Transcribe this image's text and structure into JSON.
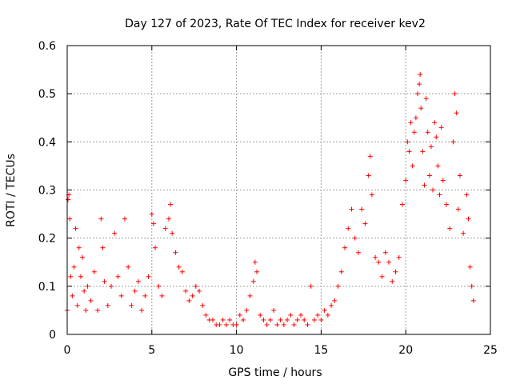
{
  "chart_data": {
    "type": "scatter",
    "title": "Day 127 of 2023, Rate Of TEC Index for receiver kev2",
    "xlabel": "GPS time / hours",
    "ylabel": "ROTI / TECUs",
    "xlim": [
      0,
      25
    ],
    "ylim": [
      0,
      0.6
    ],
    "x_ticks": [
      0,
      5,
      10,
      15,
      20,
      25
    ],
    "x_tick_labels": [
      "0",
      "5",
      "10",
      "15",
      "20",
      "25"
    ],
    "y_ticks": [
      0,
      0.1,
      0.2,
      0.3,
      0.4,
      0.5,
      0.6
    ],
    "y_tick_labels": [
      "0",
      "0.1",
      "0.2",
      "0.3",
      "0.4",
      "0.5",
      "0.6"
    ],
    "grid": true,
    "marker": "+",
    "series": [
      {
        "name": "ROTI",
        "color": "#ff0000",
        "points": [
          [
            0.0,
            0.05
          ],
          [
            0.05,
            0.28
          ],
          [
            0.1,
            0.29
          ],
          [
            0.15,
            0.24
          ],
          [
            0.2,
            0.12
          ],
          [
            0.3,
            0.08
          ],
          [
            0.4,
            0.14
          ],
          [
            0.5,
            0.22
          ],
          [
            0.6,
            0.06
          ],
          [
            0.7,
            0.18
          ],
          [
            0.8,
            0.12
          ],
          [
            0.9,
            0.16
          ],
          [
            1.0,
            0.09
          ],
          [
            1.1,
            0.05
          ],
          [
            1.2,
            0.1
          ],
          [
            1.4,
            0.07
          ],
          [
            1.6,
            0.13
          ],
          [
            1.8,
            0.05
          ],
          [
            2.0,
            0.24
          ],
          [
            2.1,
            0.18
          ],
          [
            2.2,
            0.11
          ],
          [
            2.4,
            0.06
          ],
          [
            2.6,
            0.1
          ],
          [
            2.8,
            0.21
          ],
          [
            3.0,
            0.12
          ],
          [
            3.2,
            0.08
          ],
          [
            3.4,
            0.24
          ],
          [
            3.6,
            0.14
          ],
          [
            3.8,
            0.06
          ],
          [
            4.0,
            0.09
          ],
          [
            4.2,
            0.11
          ],
          [
            4.4,
            0.05
          ],
          [
            4.6,
            0.08
          ],
          [
            4.8,
            0.12
          ],
          [
            5.0,
            0.25
          ],
          [
            5.1,
            0.23
          ],
          [
            5.2,
            0.18
          ],
          [
            5.4,
            0.1
          ],
          [
            5.6,
            0.08
          ],
          [
            5.8,
            0.22
          ],
          [
            6.0,
            0.24
          ],
          [
            6.1,
            0.27
          ],
          [
            6.2,
            0.21
          ],
          [
            6.4,
            0.17
          ],
          [
            6.6,
            0.14
          ],
          [
            6.8,
            0.13
          ],
          [
            7.0,
            0.09
          ],
          [
            7.2,
            0.07
          ],
          [
            7.4,
            0.08
          ],
          [
            7.6,
            0.1
          ],
          [
            7.8,
            0.09
          ],
          [
            8.0,
            0.06
          ],
          [
            8.2,
            0.04
          ],
          [
            8.4,
            0.03
          ],
          [
            8.6,
            0.03
          ],
          [
            8.8,
            0.02
          ],
          [
            9.0,
            0.02
          ],
          [
            9.2,
            0.03
          ],
          [
            9.4,
            0.02
          ],
          [
            9.6,
            0.03
          ],
          [
            9.8,
            0.02
          ],
          [
            10.0,
            0.02
          ],
          [
            10.2,
            0.04
          ],
          [
            10.4,
            0.03
          ],
          [
            10.6,
            0.05
          ],
          [
            10.8,
            0.08
          ],
          [
            11.0,
            0.11
          ],
          [
            11.1,
            0.15
          ],
          [
            11.2,
            0.13
          ],
          [
            11.4,
            0.04
          ],
          [
            11.6,
            0.03
          ],
          [
            11.8,
            0.02
          ],
          [
            12.0,
            0.03
          ],
          [
            12.2,
            0.05
          ],
          [
            12.4,
            0.02
          ],
          [
            12.6,
            0.03
          ],
          [
            12.8,
            0.02
          ],
          [
            13.0,
            0.03
          ],
          [
            13.2,
            0.04
          ],
          [
            13.4,
            0.02
          ],
          [
            13.6,
            0.03
          ],
          [
            13.8,
            0.04
          ],
          [
            14.0,
            0.03
          ],
          [
            14.2,
            0.02
          ],
          [
            14.4,
            0.1
          ],
          [
            14.6,
            0.03
          ],
          [
            14.8,
            0.04
          ],
          [
            15.0,
            0.03
          ],
          [
            15.2,
            0.05
          ],
          [
            15.4,
            0.04
          ],
          [
            15.6,
            0.06
          ],
          [
            15.8,
            0.07
          ],
          [
            16.0,
            0.1
          ],
          [
            16.2,
            0.13
          ],
          [
            16.4,
            0.18
          ],
          [
            16.6,
            0.22
          ],
          [
            16.8,
            0.26
          ],
          [
            17.0,
            0.2
          ],
          [
            17.2,
            0.17
          ],
          [
            17.4,
            0.26
          ],
          [
            17.6,
            0.23
          ],
          [
            17.8,
            0.33
          ],
          [
            17.9,
            0.37
          ],
          [
            18.0,
            0.29
          ],
          [
            18.2,
            0.16
          ],
          [
            18.4,
            0.15
          ],
          [
            18.6,
            0.12
          ],
          [
            18.8,
            0.17
          ],
          [
            19.0,
            0.15
          ],
          [
            19.2,
            0.11
          ],
          [
            19.4,
            0.13
          ],
          [
            19.6,
            0.16
          ],
          [
            19.8,
            0.27
          ],
          [
            20.0,
            0.32
          ],
          [
            20.1,
            0.4
          ],
          [
            20.2,
            0.38
          ],
          [
            20.3,
            0.44
          ],
          [
            20.4,
            0.35
          ],
          [
            20.5,
            0.42
          ],
          [
            20.6,
            0.45
          ],
          [
            20.7,
            0.5
          ],
          [
            20.8,
            0.52
          ],
          [
            20.85,
            0.54
          ],
          [
            20.9,
            0.47
          ],
          [
            21.0,
            0.38
          ],
          [
            21.1,
            0.31
          ],
          [
            21.2,
            0.49
          ],
          [
            21.3,
            0.42
          ],
          [
            21.4,
            0.33
          ],
          [
            21.5,
            0.39
          ],
          [
            21.6,
            0.3
          ],
          [
            21.7,
            0.44
          ],
          [
            21.8,
            0.41
          ],
          [
            21.9,
            0.35
          ],
          [
            22.0,
            0.29
          ],
          [
            22.1,
            0.43
          ],
          [
            22.2,
            0.32
          ],
          [
            22.4,
            0.27
          ],
          [
            22.6,
            0.22
          ],
          [
            22.8,
            0.4
          ],
          [
            22.9,
            0.5
          ],
          [
            23.0,
            0.46
          ],
          [
            23.1,
            0.26
          ],
          [
            23.2,
            0.33
          ],
          [
            23.4,
            0.21
          ],
          [
            23.6,
            0.29
          ],
          [
            23.7,
            0.24
          ],
          [
            23.8,
            0.14
          ],
          [
            23.9,
            0.1
          ],
          [
            24.0,
            0.07
          ]
        ]
      }
    ]
  }
}
